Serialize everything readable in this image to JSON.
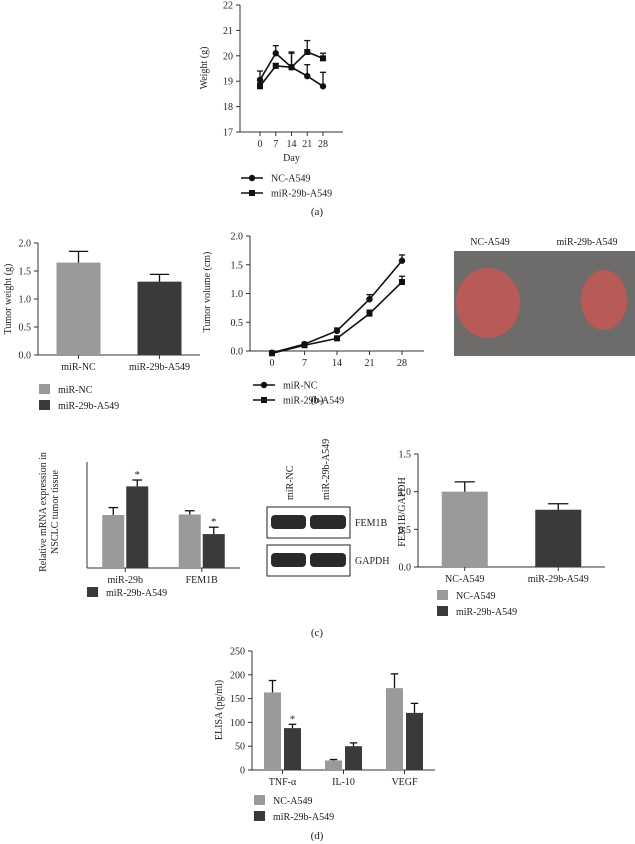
{
  "panel_labels": [
    "(a)",
    "(b)",
    "(c)",
    "(d)"
  ],
  "colors": {
    "light": "#9a9a9a",
    "dark": "#3a3a3a",
    "line": "#111111"
  },
  "photo": {
    "labels": [
      "NC-A549",
      "miR-29b-A549"
    ],
    "colors": {
      "background": "#6e6c6a",
      "tumor": "#b85a56"
    }
  },
  "blot": {
    "columns": [
      "miR-NC",
      "miR-29b-A549"
    ],
    "bands": [
      "FEM1B",
      "GAPDH"
    ]
  },
  "chart_data": [
    {
      "type": "line",
      "xlabel": "Day",
      "ylabel": "Weight (g)",
      "x": [
        0,
        7,
        14,
        21,
        28
      ],
      "xticks": [
        "0",
        "7",
        "14",
        "21",
        "28"
      ],
      "ylim": [
        17,
        22
      ],
      "yticks": [
        "17",
        "18",
        "19",
        "20",
        "21",
        "22"
      ],
      "series": [
        {
          "name": "NC-A549",
          "marker": "circle",
          "values": [
            19.05,
            20.1,
            19.55,
            19.2,
            18.8
          ],
          "err": [
            0.35,
            0.3,
            0.55,
            0.45,
            0.55
          ]
        },
        {
          "name": "miR-29b-A549",
          "marker": "square",
          "values": [
            18.8,
            19.6,
            19.55,
            20.15,
            19.9
          ],
          "err": [
            0.12,
            0.1,
            0.6,
            0.45,
            0.2
          ]
        }
      ]
    },
    {
      "type": "bar",
      "xlabel": "",
      "ylabel": "Tumor weight (g)",
      "categories": [
        "miR-NC",
        "miR-29b-A549"
      ],
      "values": [
        1.65,
        1.31
      ],
      "err": [
        0.2,
        0.13
      ],
      "bar_colors": [
        "light",
        "dark"
      ],
      "ylim": [
        0,
        2.0
      ],
      "yticks": [
        "0.0",
        "0.5",
        "1.0",
        "1.5",
        "2.0"
      ],
      "legend": [
        "miR-NC",
        "miR-29b-A549"
      ]
    },
    {
      "type": "line",
      "xlabel": "",
      "ylabel": "Tumor volume (cm)",
      "x": [
        0,
        7,
        14,
        21,
        28
      ],
      "xticks": [
        "0",
        "7",
        "14",
        "21",
        "28"
      ],
      "ylim": [
        0,
        2.0
      ],
      "yticks": [
        "0.0",
        "0.5",
        "1.0",
        "1.5",
        "2.0"
      ],
      "series": [
        {
          "name": "miR-NC",
          "marker": "circle",
          "values": [
            -0.03,
            0.12,
            0.35,
            0.9,
            1.57
          ],
          "err": [
            0.02,
            0.03,
            0.05,
            0.08,
            0.1
          ]
        },
        {
          "name": "miR-29b-A549",
          "marker": "square",
          "values": [
            -0.04,
            0.1,
            0.22,
            0.65,
            1.2
          ],
          "err": [
            0.02,
            0.03,
            0.04,
            0.06,
            0.1
          ]
        }
      ]
    },
    {
      "type": "bar",
      "xlabel": "",
      "ylabel": "Relative mRNA expression in NSCLC tumor tissue",
      "ylabel_lines": [
        "Relative mRNA expression in",
        "NSCLC tumor tissue"
      ],
      "categories": [
        "miR-29b",
        "FEM1B"
      ],
      "series": [
        {
          "name": "",
          "values": [
            1.0,
            1.01
          ],
          "err": [
            0.14,
            0.07
          ],
          "color": "light"
        },
        {
          "name": "miR-29b-A549",
          "values": [
            1.54,
            0.64
          ],
          "err": [
            0.12,
            0.13
          ],
          "color": "dark"
        }
      ],
      "annotations": [
        "*",
        "*"
      ],
      "ylim": [
        0,
        2.0
      ],
      "legend": [
        "miR-29b-A549"
      ]
    },
    {
      "type": "bar",
      "xlabel": "",
      "ylabel": "FEM1B/GAPDH",
      "categories": [
        "NC-A549",
        "miR-29b-A549"
      ],
      "values": [
        1.0,
        0.76
      ],
      "err": [
        0.13,
        0.08
      ],
      "bar_colors": [
        "light",
        "dark"
      ],
      "ylim": [
        0,
        1.5
      ],
      "yticks": [
        "0.0",
        "0.5",
        "1.0",
        "1.5"
      ],
      "legend": [
        "NC-A549",
        "miR-29b-A549"
      ]
    },
    {
      "type": "bar",
      "xlabel": "",
      "ylabel": "ELISA (pg/ml)",
      "categories": [
        "TNF-α",
        "IL-10",
        "VEGF"
      ],
      "series": [
        {
          "name": "NC-A549",
          "values": [
            163,
            20,
            172
          ],
          "err": [
            25,
            2,
            30
          ],
          "color": "light"
        },
        {
          "name": "miR-29b-A549",
          "values": [
            88,
            50,
            120
          ],
          "err": [
            8,
            7,
            20
          ],
          "color": "dark"
        }
      ],
      "annotations": [
        "*",
        "",
        ""
      ],
      "ylim": [
        0,
        250
      ],
      "yticks": [
        "0",
        "50",
        "100",
        "150",
        "200",
        "250"
      ],
      "legend": [
        "NC-A549",
        "miR-29b-A549"
      ]
    }
  ]
}
